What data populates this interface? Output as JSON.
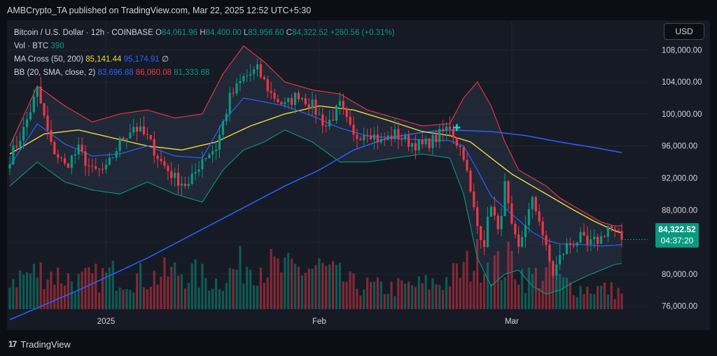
{
  "header": {
    "publisher_line": "AMBCrypto_TA published on TradingView.com, Mar 22, 2025 12:52 UTC+5:30"
  },
  "legend": {
    "symbol": "Bitcoin / U.S. Dollar · 12h · COINBASE",
    "o_label": "O",
    "o_value": "84,061.96",
    "h_label": "H",
    "h_value": "84,400.00",
    "l_label": "L",
    "l_value": "83,956.60",
    "c_label": "C",
    "c_value": "84,322.52",
    "change": "+260.56 (+0.31%)",
    "vol_label": "Vol · BTC",
    "vol_value": "390",
    "ma_label": "MA Cross (50, 200)",
    "ma_fast": "85,141.44",
    "ma_slow": "95,174.91",
    "ma_extra": "∅",
    "bb_label": "BB (20, SMA, close, 2)",
    "bb_basis": "83,696.88",
    "bb_upper": "86,060.08",
    "bb_lower": "81,333.68"
  },
  "toolbar": {
    "currency": "USD"
  },
  "price_tag": {
    "price": "84,322.52",
    "countdown": "04:37:20"
  },
  "footer": {
    "brand": "TradingView",
    "logo": "17"
  },
  "colors": {
    "up": "#089981",
    "down": "#f23645",
    "ma_fast": "#f0d93c",
    "ma_slow": "#2962ff",
    "bb_basis": "#2962ff",
    "bb_upper": "#f23645",
    "bb_lower": "#089981",
    "band_fill": "#2a3346"
  },
  "chart_data": {
    "type": "candlestick",
    "y_ticks": [
      76000,
      80000,
      84000,
      88000,
      92000,
      96000,
      100000,
      104000,
      108000
    ],
    "y_tick_labels": [
      "76,000.00",
      "80,000.00",
      "",
      "88,000.00",
      "92,000.00",
      "96,000.00",
      "100,000.00",
      "104,000.00",
      "108,000.00"
    ],
    "ylim": [
      73000,
      111700
    ],
    "x_ticks": [
      {
        "label": "2025",
        "index": 28
      },
      {
        "label": "Feb",
        "index": 90
      },
      {
        "label": "Mar",
        "index": 146
      }
    ],
    "anchors": [
      [
        0,
        94500
      ],
      [
        4,
        98000
      ],
      [
        8,
        103000
      ],
      [
        12,
        96000
      ],
      [
        16,
        93500
      ],
      [
        20,
        95500
      ],
      [
        24,
        92800
      ],
      [
        28,
        93000
      ],
      [
        32,
        96500
      ],
      [
        36,
        98500
      ],
      [
        40,
        97000
      ],
      [
        44,
        94000
      ],
      [
        48,
        92000
      ],
      [
        52,
        91000
      ],
      [
        56,
        94500
      ],
      [
        60,
        95800
      ],
      [
        64,
        102000
      ],
      [
        68,
        104500
      ],
      [
        72,
        105500
      ],
      [
        76,
        102500
      ],
      [
        80,
        101000
      ],
      [
        84,
        102500
      ],
      [
        88,
        101000
      ],
      [
        92,
        98500
      ],
      [
        96,
        101000
      ],
      [
        100,
        97000
      ],
      [
        104,
        98000
      ],
      [
        108,
        96500
      ],
      [
        112,
        97500
      ],
      [
        116,
        96500
      ],
      [
        120,
        96000
      ],
      [
        124,
        97000
      ],
      [
        128,
        98500
      ],
      [
        130,
        96500
      ],
      [
        132,
        95000
      ],
      [
        134,
        90000
      ],
      [
        136,
        86000
      ],
      [
        138,
        84000
      ],
      [
        140,
        89000
      ],
      [
        142,
        85000
      ],
      [
        144,
        91000
      ],
      [
        146,
        85500
      ],
      [
        148,
        83000
      ],
      [
        150,
        86500
      ],
      [
        152,
        89000
      ],
      [
        154,
        87000
      ],
      [
        156,
        83000
      ],
      [
        158,
        80000
      ],
      [
        160,
        82000
      ],
      [
        162,
        83500
      ],
      [
        164,
        84000
      ],
      [
        166,
        84500
      ],
      [
        168,
        83500
      ],
      [
        170,
        84000
      ],
      [
        172,
        84500
      ],
      [
        174,
        86000
      ],
      [
        176,
        85000
      ],
      [
        178,
        84322.52
      ]
    ],
    "bb_upper_anchors": [
      [
        0,
        96000
      ],
      [
        8,
        103500
      ],
      [
        16,
        101000
      ],
      [
        24,
        99000
      ],
      [
        32,
        100000
      ],
      [
        40,
        100500
      ],
      [
        48,
        99500
      ],
      [
        56,
        100000
      ],
      [
        62,
        105000
      ],
      [
        68,
        108500
      ],
      [
        74,
        106500
      ],
      [
        80,
        104000
      ],
      [
        88,
        103000
      ],
      [
        96,
        102500
      ],
      [
        104,
        100500
      ],
      [
        112,
        99500
      ],
      [
        120,
        98500
      ],
      [
        128,
        98800
      ],
      [
        132,
        102000
      ],
      [
        136,
        104000
      ],
      [
        140,
        101000
      ],
      [
        144,
        96500
      ],
      [
        148,
        93000
      ],
      [
        152,
        92000
      ],
      [
        156,
        91000
      ],
      [
        160,
        89500
      ],
      [
        164,
        88500
      ],
      [
        168,
        87500
      ],
      [
        172,
        86500
      ],
      [
        176,
        86000
      ],
      [
        178,
        86060.08
      ]
    ],
    "bb_lower_anchors": [
      [
        0,
        91000
      ],
      [
        8,
        94000
      ],
      [
        16,
        91500
      ],
      [
        24,
        90500
      ],
      [
        32,
        90000
      ],
      [
        40,
        91500
      ],
      [
        48,
        90000
      ],
      [
        56,
        89000
      ],
      [
        62,
        93000
      ],
      [
        68,
        95500
      ],
      [
        74,
        96500
      ],
      [
        80,
        98000
      ],
      [
        88,
        96500
      ],
      [
        96,
        94000
      ],
      [
        104,
        94000
      ],
      [
        112,
        94500
      ],
      [
        120,
        95000
      ],
      [
        128,
        94500
      ],
      [
        132,
        90000
      ],
      [
        136,
        82000
      ],
      [
        140,
        78500
      ],
      [
        144,
        80000
      ],
      [
        148,
        80500
      ],
      [
        152,
        78500
      ],
      [
        156,
        77500
      ],
      [
        160,
        78000
      ],
      [
        164,
        79000
      ],
      [
        168,
        79800
      ],
      [
        172,
        80500
      ],
      [
        176,
        81200
      ],
      [
        178,
        81333.68
      ]
    ],
    "ma50_anchors": [
      [
        0,
        95000
      ],
      [
        10,
        97500
      ],
      [
        20,
        98000
      ],
      [
        30,
        97000
      ],
      [
        40,
        96000
      ],
      [
        50,
        95500
      ],
      [
        60,
        96500
      ],
      [
        70,
        98500
      ],
      [
        80,
        100000
      ],
      [
        90,
        101000
      ],
      [
        100,
        100500
      ],
      [
        110,
        99200
      ],
      [
        120,
        97800
      ],
      [
        128,
        97300
      ],
      [
        134,
        96500
      ],
      [
        140,
        94500
      ],
      [
        146,
        92500
      ],
      [
        152,
        91000
      ],
      [
        158,
        89500
      ],
      [
        164,
        88000
      ],
      [
        170,
        86600
      ],
      [
        176,
        85400
      ],
      [
        178,
        85141.44
      ]
    ],
    "ma200_anchors": [
      [
        0,
        74300
      ],
      [
        20,
        78000
      ],
      [
        40,
        82000
      ],
      [
        60,
        86500
      ],
      [
        80,
        91000
      ],
      [
        90,
        93000
      ],
      [
        100,
        95500
      ],
      [
        110,
        97000
      ],
      [
        120,
        97700
      ],
      [
        128,
        98000
      ],
      [
        140,
        97800
      ],
      [
        150,
        97300
      ],
      [
        160,
        96500
      ],
      [
        170,
        95800
      ],
      [
        178,
        95174.91
      ]
    ],
    "volume_anchors": [
      [
        0,
        0.45
      ],
      [
        10,
        0.55
      ],
      [
        20,
        0.4
      ],
      [
        30,
        0.5
      ],
      [
        40,
        0.45
      ],
      [
        50,
        0.55
      ],
      [
        60,
        0.4
      ],
      [
        70,
        0.7
      ],
      [
        80,
        0.55
      ],
      [
        90,
        0.6
      ],
      [
        100,
        0.35
      ],
      [
        110,
        0.3
      ],
      [
        120,
        0.35
      ],
      [
        126,
        0.4
      ],
      [
        130,
        0.5
      ],
      [
        134,
        0.65
      ],
      [
        138,
        0.8
      ],
      [
        142,
        0.6
      ],
      [
        146,
        0.7
      ],
      [
        150,
        0.45
      ],
      [
        156,
        0.5
      ],
      [
        160,
        0.4
      ],
      [
        166,
        0.3
      ],
      [
        172,
        0.3
      ],
      [
        178,
        0.25
      ]
    ],
    "current_price": 84322.52
  }
}
